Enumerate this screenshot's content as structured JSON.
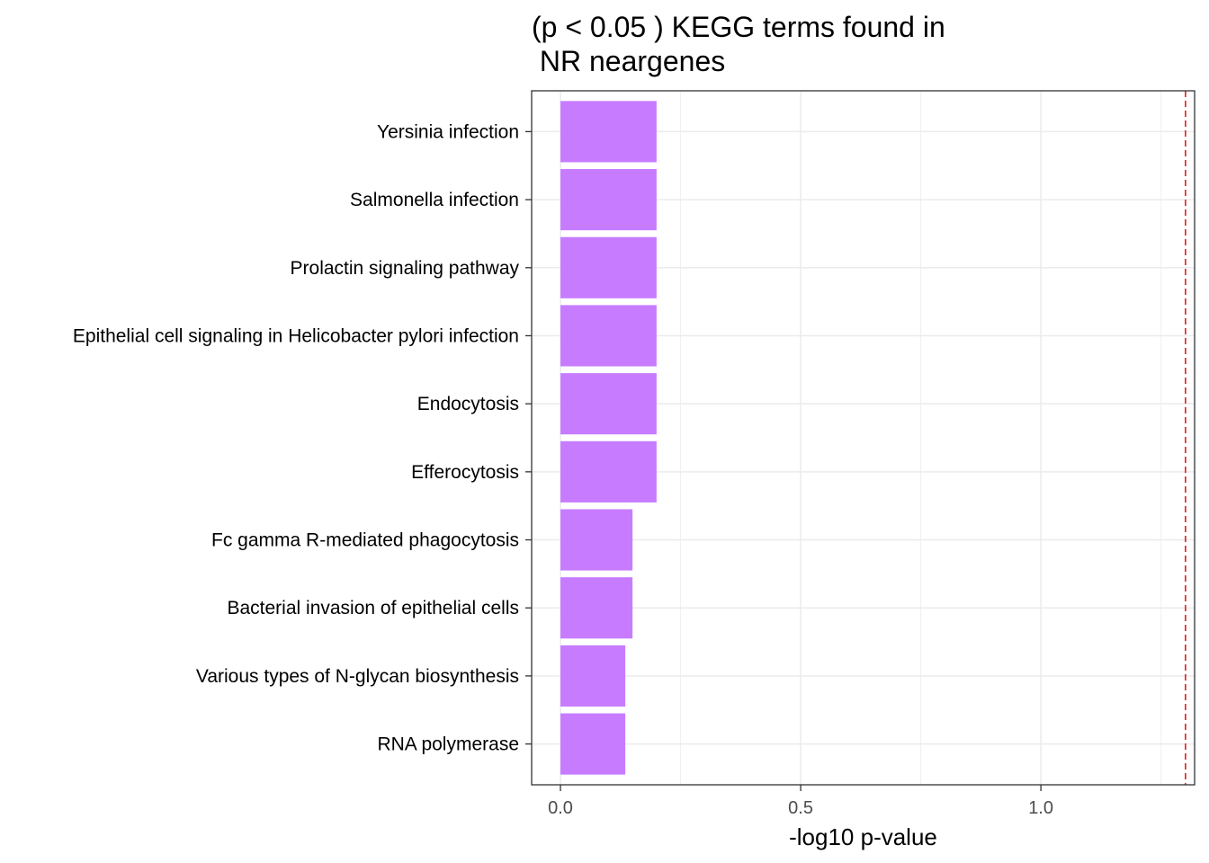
{
  "chart_data": {
    "type": "bar",
    "orientation": "horizontal",
    "title_lines": [
      "(p < 0.05 ) KEGG terms found in",
      " NR neargenes"
    ],
    "xlabel": "-log10 p-value",
    "ylabel": "",
    "xlim": [
      -0.06,
      1.32
    ],
    "xticks": [
      0.0,
      0.5,
      1.0
    ],
    "xtick_labels": [
      "0.0",
      "0.5",
      "1.0"
    ],
    "categories": [
      "Yersinia infection",
      "Salmonella infection",
      "Prolactin signaling pathway",
      "Epithelial cell signaling in Helicobacter pylori infection",
      "Endocytosis",
      "Efferocytosis",
      "Fc gamma R-mediated phagocytosis",
      "Bacterial invasion of epithelial cells",
      "Various types of N-glycan biosynthesis",
      "RNA polymerase"
    ],
    "values": [
      0.2,
      0.2,
      0.2,
      0.2,
      0.2,
      0.2,
      0.15,
      0.15,
      0.135,
      0.135
    ],
    "reference_line": {
      "value": 1.301,
      "style": "dashed",
      "color": "#e41a1c"
    },
    "bar_color": "#c77cff",
    "grid": true,
    "legend": "none"
  }
}
